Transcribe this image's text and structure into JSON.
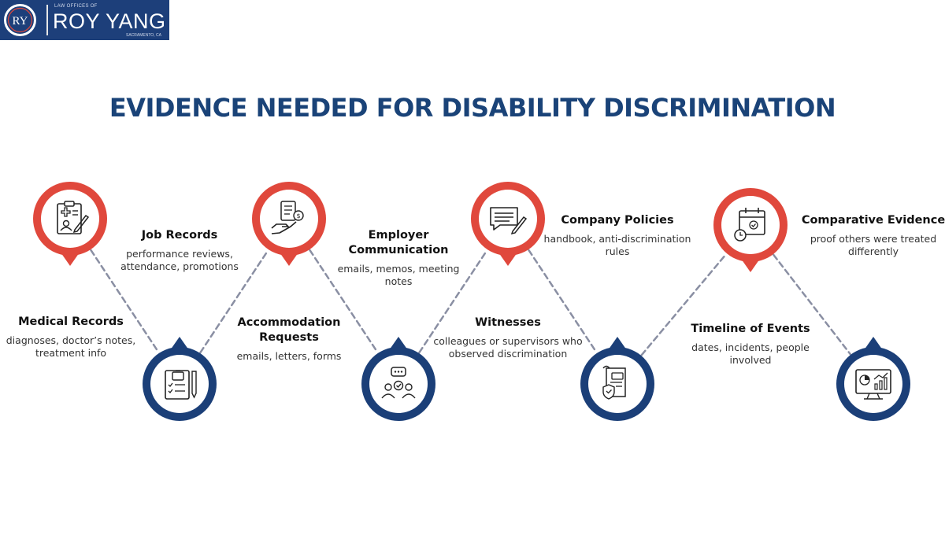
{
  "logo": {
    "monogram": "RY",
    "tagline": "LAW OFFICES OF",
    "name": "ROY YANG",
    "city": "SACRAMENTO, CA"
  },
  "title": "EVIDENCE NEEDED FOR DISABILITY DISCRIMINATION",
  "colors": {
    "red": "#e0483c",
    "navy": "#1b3f78",
    "connector": "#8a8fa3",
    "title": "#1a4378"
  },
  "items": [
    {
      "heading": "Medical Records",
      "description": "diagnoses, doctor’s notes, treatment info",
      "icon": "medical-clipboard-icon",
      "pin": "red-up"
    },
    {
      "heading": "Job Records",
      "description": "performance reviews, attendance, promotions",
      "icon": "job-records-icon",
      "pin": "navy-down"
    },
    {
      "heading": "Accommodation Requests",
      "description": "emails, letters, forms",
      "icon": "hand-checklist-icon",
      "pin": "red-up"
    },
    {
      "heading": "Employer Communication",
      "description": "emails, memos, meeting notes",
      "icon": "group-chat-icon",
      "pin": "navy-down"
    },
    {
      "heading": "Witnesses",
      "description": "colleagues or supervisors who observed discrimination",
      "icon": "message-pen-icon",
      "pin": "red-up"
    },
    {
      "heading": "Company Policies",
      "description": "handbook, anti-discrimination rules",
      "icon": "policy-scroll-icon",
      "pin": "navy-down"
    },
    {
      "heading": "Timeline of Events",
      "description": "dates, incidents, people involved",
      "icon": "calendar-clock-icon",
      "pin": "red-up"
    },
    {
      "heading": "Comparative Evidence",
      "description": "proof others were treated differently",
      "icon": "analytics-monitor-icon",
      "pin": "navy-down"
    }
  ]
}
